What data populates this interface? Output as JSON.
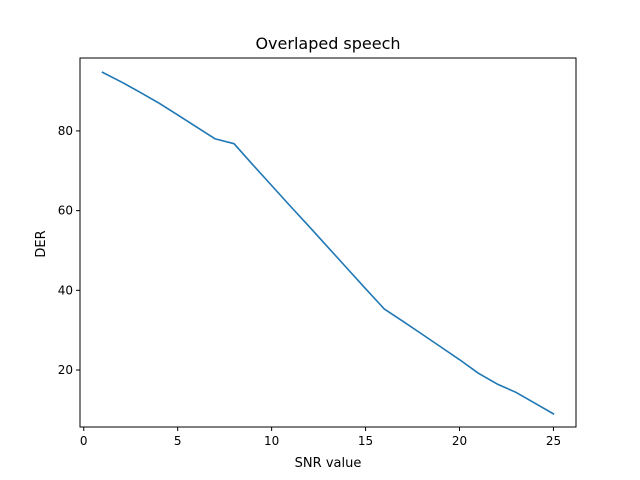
{
  "chart_data": {
    "type": "line",
    "title": "Overlaped speech",
    "xlabel": "SNR value",
    "ylabel": "DER",
    "xlim": [
      -0.2,
      26.2
    ],
    "ylim": [
      5.7,
      98.3
    ],
    "xticks": [
      0,
      5,
      10,
      15,
      20,
      25
    ],
    "yticks": [
      20,
      40,
      60,
      80
    ],
    "grid": false,
    "series": [
      {
        "color": "#1f77b4",
        "x": [
          1,
          2,
          3,
          4,
          5,
          6,
          7,
          8,
          9,
          10,
          11,
          12,
          13,
          14,
          15,
          16,
          17,
          18,
          19,
          20,
          21,
          22,
          23,
          24,
          25
        ],
        "y": [
          94.7,
          92.3,
          89.7,
          87.0,
          84.0,
          81.0,
          78.0,
          76.8,
          71.5,
          66.3,
          61.1,
          56.0,
          50.8,
          45.6,
          40.4,
          35.3,
          32.2,
          29.0,
          25.8,
          22.6,
          19.2,
          16.5,
          14.4,
          11.7,
          9.0
        ]
      }
    ]
  }
}
